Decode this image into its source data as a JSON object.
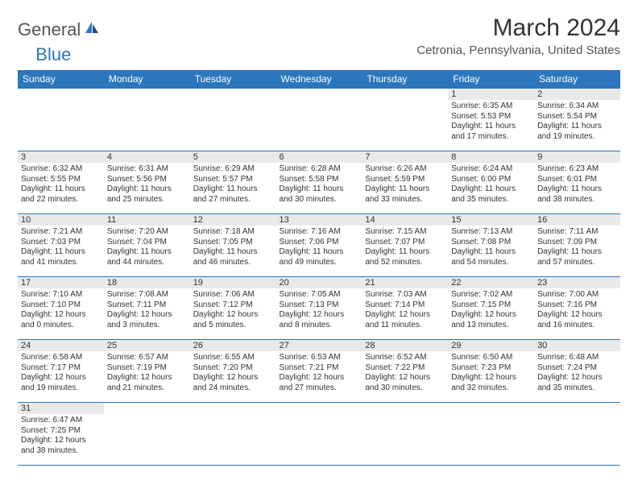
{
  "logo": {
    "general": "General",
    "blue": "Blue"
  },
  "title": "March 2024",
  "location": "Cetronia, Pennsylvania, United States",
  "colors": {
    "brand": "#2b76bd",
    "headerText": "#ffffff",
    "daynumBg": "#e9e9e9",
    "bodyBg": "#ffffff",
    "textColor": "#333333"
  },
  "dayHeaders": [
    "Sunday",
    "Monday",
    "Tuesday",
    "Wednesday",
    "Thursday",
    "Friday",
    "Saturday"
  ],
  "weeks": [
    [
      null,
      null,
      null,
      null,
      null,
      {
        "n": "1",
        "sr": "Sunrise: 6:35 AM",
        "ss": "Sunset: 5:53 PM",
        "dl": "Daylight: 11 hours and 17 minutes."
      },
      {
        "n": "2",
        "sr": "Sunrise: 6:34 AM",
        "ss": "Sunset: 5:54 PM",
        "dl": "Daylight: 11 hours and 19 minutes."
      }
    ],
    [
      {
        "n": "3",
        "sr": "Sunrise: 6:32 AM",
        "ss": "Sunset: 5:55 PM",
        "dl": "Daylight: 11 hours and 22 minutes."
      },
      {
        "n": "4",
        "sr": "Sunrise: 6:31 AM",
        "ss": "Sunset: 5:56 PM",
        "dl": "Daylight: 11 hours and 25 minutes."
      },
      {
        "n": "5",
        "sr": "Sunrise: 6:29 AM",
        "ss": "Sunset: 5:57 PM",
        "dl": "Daylight: 11 hours and 27 minutes."
      },
      {
        "n": "6",
        "sr": "Sunrise: 6:28 AM",
        "ss": "Sunset: 5:58 PM",
        "dl": "Daylight: 11 hours and 30 minutes."
      },
      {
        "n": "7",
        "sr": "Sunrise: 6:26 AM",
        "ss": "Sunset: 5:59 PM",
        "dl": "Daylight: 11 hours and 33 minutes."
      },
      {
        "n": "8",
        "sr": "Sunrise: 6:24 AM",
        "ss": "Sunset: 6:00 PM",
        "dl": "Daylight: 11 hours and 35 minutes."
      },
      {
        "n": "9",
        "sr": "Sunrise: 6:23 AM",
        "ss": "Sunset: 6:01 PM",
        "dl": "Daylight: 11 hours and 38 minutes."
      }
    ],
    [
      {
        "n": "10",
        "sr": "Sunrise: 7:21 AM",
        "ss": "Sunset: 7:03 PM",
        "dl": "Daylight: 11 hours and 41 minutes."
      },
      {
        "n": "11",
        "sr": "Sunrise: 7:20 AM",
        "ss": "Sunset: 7:04 PM",
        "dl": "Daylight: 11 hours and 44 minutes."
      },
      {
        "n": "12",
        "sr": "Sunrise: 7:18 AM",
        "ss": "Sunset: 7:05 PM",
        "dl": "Daylight: 11 hours and 46 minutes."
      },
      {
        "n": "13",
        "sr": "Sunrise: 7:16 AM",
        "ss": "Sunset: 7:06 PM",
        "dl": "Daylight: 11 hours and 49 minutes."
      },
      {
        "n": "14",
        "sr": "Sunrise: 7:15 AM",
        "ss": "Sunset: 7:07 PM",
        "dl": "Daylight: 11 hours and 52 minutes."
      },
      {
        "n": "15",
        "sr": "Sunrise: 7:13 AM",
        "ss": "Sunset: 7:08 PM",
        "dl": "Daylight: 11 hours and 54 minutes."
      },
      {
        "n": "16",
        "sr": "Sunrise: 7:11 AM",
        "ss": "Sunset: 7:09 PM",
        "dl": "Daylight: 11 hours and 57 minutes."
      }
    ],
    [
      {
        "n": "17",
        "sr": "Sunrise: 7:10 AM",
        "ss": "Sunset: 7:10 PM",
        "dl": "Daylight: 12 hours and 0 minutes."
      },
      {
        "n": "18",
        "sr": "Sunrise: 7:08 AM",
        "ss": "Sunset: 7:11 PM",
        "dl": "Daylight: 12 hours and 3 minutes."
      },
      {
        "n": "19",
        "sr": "Sunrise: 7:06 AM",
        "ss": "Sunset: 7:12 PM",
        "dl": "Daylight: 12 hours and 5 minutes."
      },
      {
        "n": "20",
        "sr": "Sunrise: 7:05 AM",
        "ss": "Sunset: 7:13 PM",
        "dl": "Daylight: 12 hours and 8 minutes."
      },
      {
        "n": "21",
        "sr": "Sunrise: 7:03 AM",
        "ss": "Sunset: 7:14 PM",
        "dl": "Daylight: 12 hours and 11 minutes."
      },
      {
        "n": "22",
        "sr": "Sunrise: 7:02 AM",
        "ss": "Sunset: 7:15 PM",
        "dl": "Daylight: 12 hours and 13 minutes."
      },
      {
        "n": "23",
        "sr": "Sunrise: 7:00 AM",
        "ss": "Sunset: 7:16 PM",
        "dl": "Daylight: 12 hours and 16 minutes."
      }
    ],
    [
      {
        "n": "24",
        "sr": "Sunrise: 6:58 AM",
        "ss": "Sunset: 7:17 PM",
        "dl": "Daylight: 12 hours and 19 minutes."
      },
      {
        "n": "25",
        "sr": "Sunrise: 6:57 AM",
        "ss": "Sunset: 7:19 PM",
        "dl": "Daylight: 12 hours and 21 minutes."
      },
      {
        "n": "26",
        "sr": "Sunrise: 6:55 AM",
        "ss": "Sunset: 7:20 PM",
        "dl": "Daylight: 12 hours and 24 minutes."
      },
      {
        "n": "27",
        "sr": "Sunrise: 6:53 AM",
        "ss": "Sunset: 7:21 PM",
        "dl": "Daylight: 12 hours and 27 minutes."
      },
      {
        "n": "28",
        "sr": "Sunrise: 6:52 AM",
        "ss": "Sunset: 7:22 PM",
        "dl": "Daylight: 12 hours and 30 minutes."
      },
      {
        "n": "29",
        "sr": "Sunrise: 6:50 AM",
        "ss": "Sunset: 7:23 PM",
        "dl": "Daylight: 12 hours and 32 minutes."
      },
      {
        "n": "30",
        "sr": "Sunrise: 6:48 AM",
        "ss": "Sunset: 7:24 PM",
        "dl": "Daylight: 12 hours and 35 minutes."
      }
    ],
    [
      {
        "n": "31",
        "sr": "Sunrise: 6:47 AM",
        "ss": "Sunset: 7:25 PM",
        "dl": "Daylight: 12 hours and 38 minutes."
      },
      null,
      null,
      null,
      null,
      null,
      null
    ]
  ]
}
